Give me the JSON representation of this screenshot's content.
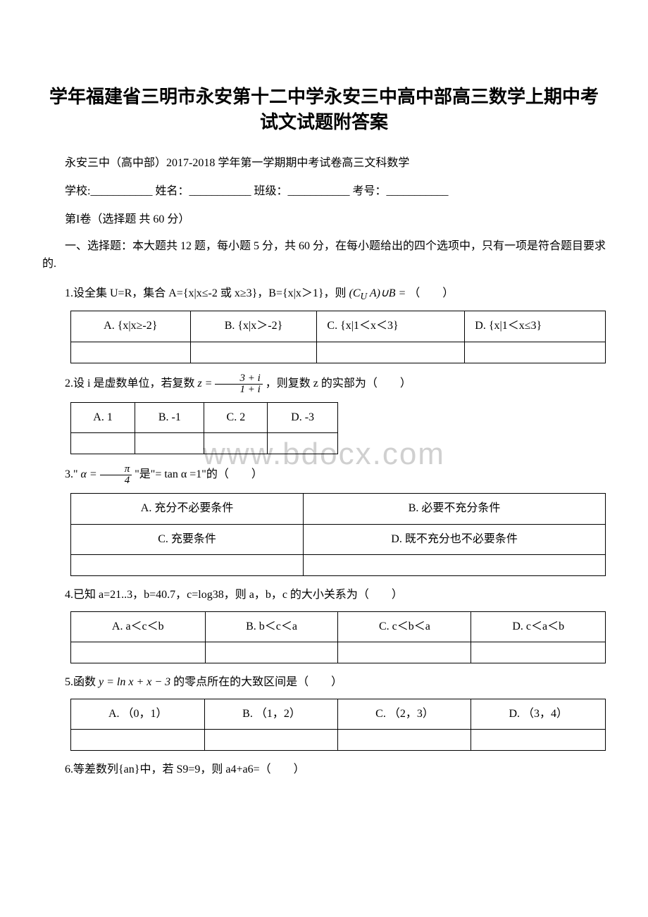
{
  "title": "学年福建省三明市永安第十二中学永安三中高中部高三数学上期中考试文试题附答案",
  "subtitle": "永安三中（高中部）2017-2018 学年第一学期期中考试卷高三文科数学",
  "formLine": {
    "school": "学校:___________",
    "name": "姓名：___________",
    "class": "班级：___________",
    "number": "考号：___________"
  },
  "partLabel": "第I卷（选择题 共 60 分）",
  "instruction": "一、选择题：本大题共 12 题，每小题 5 分，共 60 分，在每小题给出的四个选项中，只有一项是符合题目要求的.",
  "q1": {
    "text_pre": "1.设全集 U=R，集合 A={x|x≤-2 或 x≥3}，B={x|x＞1}，则",
    "formula": "(C_U A)∪B =",
    "text_post": "（　　）",
    "options": {
      "A": "A. {x|x≥-2}",
      "B": "B. {x|x＞-2}",
      "C": "C. {x|1＜x＜3}",
      "D": "D. {x|1＜x≤3}"
    }
  },
  "q2": {
    "text_pre": "2.设 i 是虚数单位，若复数",
    "text_post": "，则复数 z 的实部为（　　）",
    "options": {
      "A": "A. 1",
      "B": "B. -1",
      "C": "C. 2",
      "D": "D. -3"
    }
  },
  "q3": {
    "text_pre": "3.\"",
    "text_mid": "\"是\"= tan α =1\"的（　　）",
    "options": {
      "A": "A. 充分不必要条件",
      "B": "B. 必要不充分条件",
      "C": "C. 充要条件",
      "D": "D. 既不充分也不必要条件"
    }
  },
  "q4": {
    "text": "4.已知 a=21..3，b=40.7，c=log38，则 a，b，c 的大小关系为（　　）",
    "options": {
      "A": "A. a＜c＜b",
      "B": "B. b＜c＜a",
      "C": "C. c＜b＜a",
      "D": "D. c＜a＜b"
    }
  },
  "q5": {
    "text_pre": "5.函数",
    "formula": "y = ln x + x − 3",
    "text_post": "的零点所在的大致区间是（　　）",
    "options": {
      "A": "A. （0，1）",
      "B": "B. （1，2）",
      "C": "C. （2，3）",
      "D": "D. （3，4）"
    }
  },
  "q6": {
    "text": "6.等差数列{an}中，若 S9=9，则 a4+a6=（　　）"
  },
  "watermark": "www.bdocx.com",
  "styling": {
    "body_width": 920,
    "body_height": 1302,
    "title_fontsize": 26,
    "body_fontsize": 16,
    "watermark_fontsize": 44,
    "watermark_color": "#d0d0d0",
    "border_color": "#000000",
    "text_color": "#000000",
    "background_color": "#ffffff"
  }
}
